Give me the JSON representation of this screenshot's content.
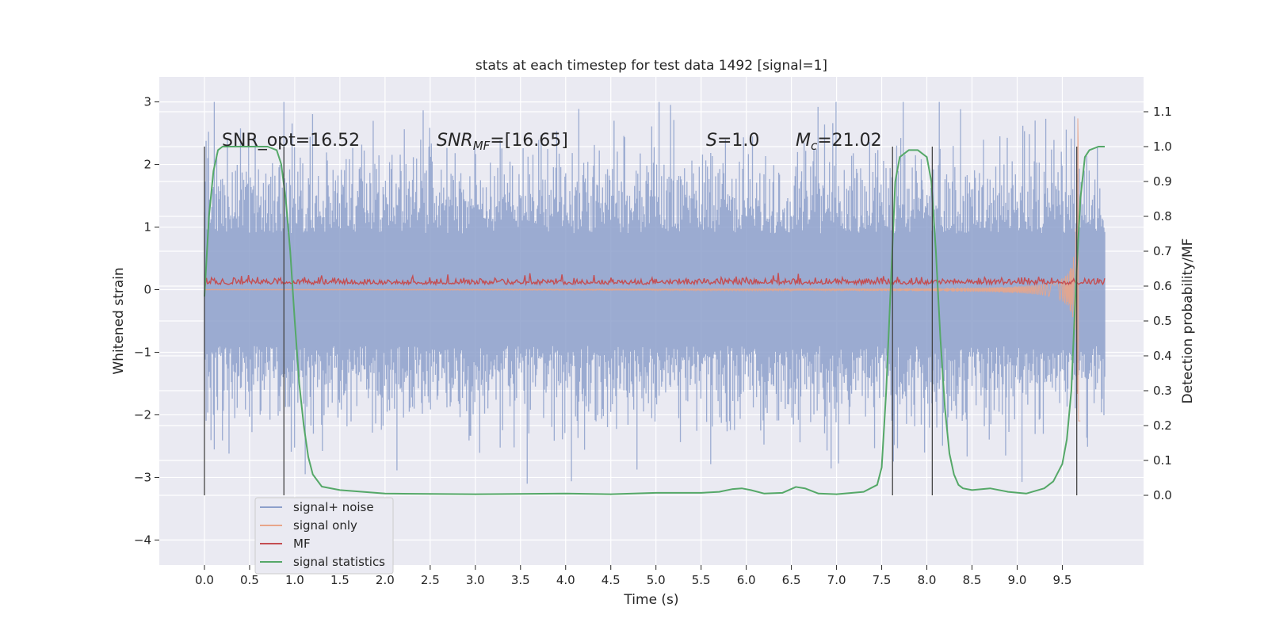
{
  "chart_data": {
    "type": "line",
    "title": "stats at each timestep for test data 1492 [signal=1]",
    "xlabel": "Time (s)",
    "ylabel": "Whitened strain",
    "ylabel_right": "Detection probability/MF",
    "xlim": [
      -0.5,
      10.4
    ],
    "ylim": [
      -4.4,
      3.4
    ],
    "ylim_right": [
      -0.2,
      1.2
    ],
    "x_ticks": [
      "0.0",
      "0.5",
      "1.0",
      "1.5",
      "2.0",
      "2.5",
      "3.0",
      "3.5",
      "4.0",
      "4.5",
      "5.0",
      "5.5",
      "6.0",
      "6.5",
      "7.0",
      "7.5",
      "8.0",
      "8.5",
      "9.0",
      "9.5"
    ],
    "y_ticks": [
      "3",
      "2",
      "1",
      "0",
      "−1",
      "−2",
      "−3",
      "−4"
    ],
    "y_ticks_right": [
      "1.1",
      "1.0",
      "0.9",
      "0.8",
      "0.7",
      "0.6",
      "0.5",
      "0.4",
      "0.3",
      "0.2",
      "0.1",
      "0.0"
    ],
    "grid": true,
    "legend_position": "lower-left",
    "annotations": {
      "snr_opt": "SNR_opt=16.52",
      "snr_mf_base": "SNR",
      "snr_mf_sub": "MF",
      "snr_mf_rest": "=[16.65]",
      "s_label": "S",
      "s_value": "=1.0",
      "mc_base": "M",
      "mc_sub": "c",
      "mc_value": "=21.02"
    },
    "vertical_markers": [
      0.0,
      0.88,
      7.62,
      8.06,
      9.66
    ],
    "series": [
      {
        "name": "signal+ noise",
        "color": "#8da0cb",
        "axis": "left",
        "noise_std": 0.75,
        "x_range": [
          0.0,
          9.97
        ]
      },
      {
        "name": "signal only",
        "color": "#e8a58a",
        "axis": "left",
        "x_range": [
          0.0,
          9.7
        ],
        "chirp_end": 9.68,
        "peak_amplitude": 2.75
      },
      {
        "name": "MF",
        "color": "#c44e52",
        "axis": "right",
        "baseline": 0.605,
        "x_range": [
          0.0,
          9.97
        ]
      },
      {
        "name": "signal statistics",
        "color": "#55a868",
        "axis": "right",
        "x": [
          0.0,
          0.05,
          0.1,
          0.15,
          0.2,
          0.3,
          0.5,
          0.7,
          0.8,
          0.85,
          0.9,
          0.95,
          1.0,
          1.05,
          1.1,
          1.15,
          1.2,
          1.3,
          1.5,
          2.0,
          3.0,
          4.0,
          4.5,
          5.0,
          5.5,
          5.7,
          5.85,
          5.95,
          6.05,
          6.2,
          6.4,
          6.55,
          6.65,
          6.8,
          7.0,
          7.3,
          7.45,
          7.5,
          7.55,
          7.6,
          7.65,
          7.7,
          7.8,
          7.9,
          8.0,
          8.05,
          8.1,
          8.15,
          8.2,
          8.25,
          8.3,
          8.35,
          8.4,
          8.5,
          8.7,
          8.9,
          9.1,
          9.3,
          9.4,
          9.5,
          9.55,
          9.6,
          9.65,
          9.7,
          9.75,
          9.8,
          9.9,
          9.97
        ],
        "y": [
          0.57,
          0.8,
          0.93,
          0.99,
          1.0,
          1.0,
          1.0,
          1.0,
          0.99,
          0.95,
          0.85,
          0.7,
          0.5,
          0.32,
          0.2,
          0.11,
          0.06,
          0.025,
          0.015,
          0.005,
          0.003,
          0.005,
          0.003,
          0.007,
          0.007,
          0.01,
          0.018,
          0.02,
          0.015,
          0.005,
          0.007,
          0.024,
          0.02,
          0.005,
          0.003,
          0.01,
          0.03,
          0.08,
          0.3,
          0.6,
          0.9,
          0.97,
          0.99,
          0.99,
          0.97,
          0.9,
          0.7,
          0.45,
          0.25,
          0.12,
          0.06,
          0.03,
          0.02,
          0.015,
          0.02,
          0.01,
          0.005,
          0.02,
          0.04,
          0.09,
          0.16,
          0.3,
          0.6,
          0.85,
          0.97,
          0.99,
          1.0,
          1.0
        ]
      }
    ]
  }
}
